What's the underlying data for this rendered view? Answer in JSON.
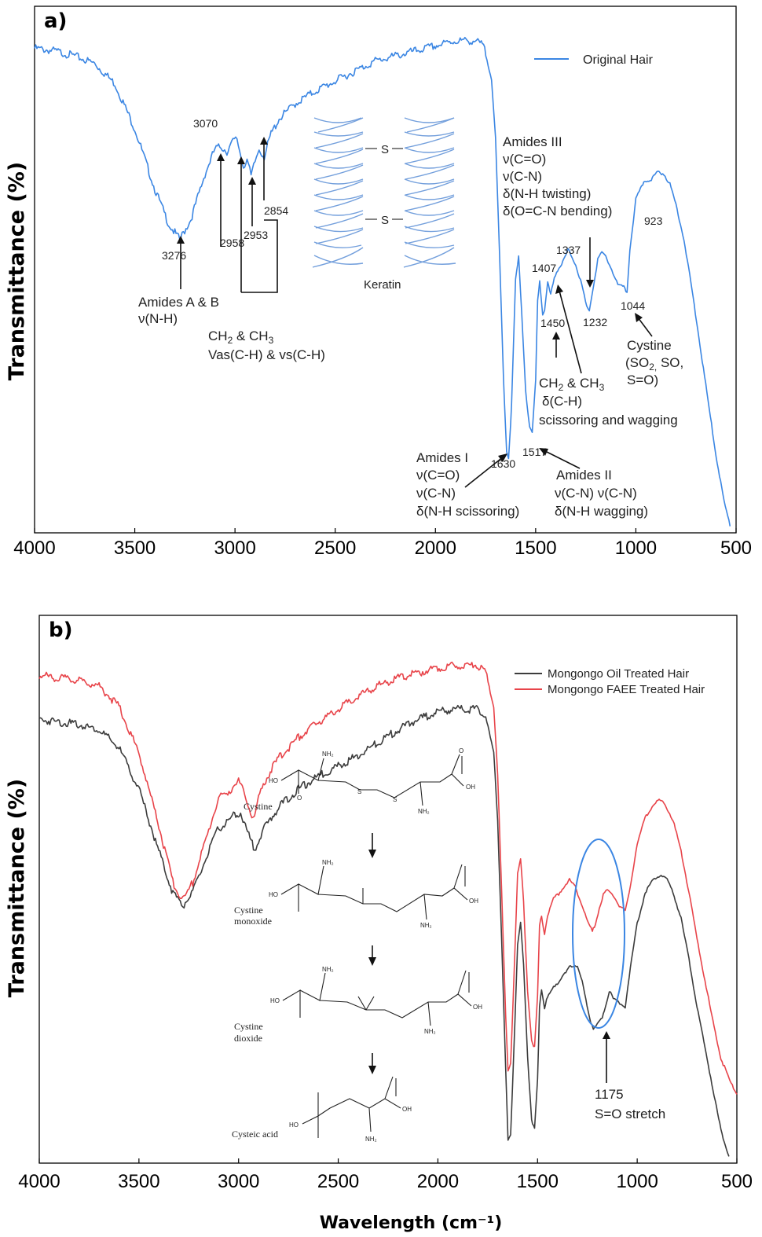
{
  "chart_data": [
    {
      "panel_label": "a)",
      "type": "line",
      "xlabel": "",
      "ylabel": "Transmittance (%)",
      "xlim": [
        4000,
        500
      ],
      "x_reversed": true,
      "x_ticks": [
        4000,
        3500,
        3000,
        2500,
        2000,
        1500,
        1000,
        500
      ],
      "legend_position": "top-right",
      "series": [
        {
          "name": "Original Hair",
          "color": "#3b86e3",
          "points": [
            [
              4000,
              0.96
            ],
            [
              3900,
              0.955
            ],
            [
              3800,
              0.945
            ],
            [
              3700,
              0.93
            ],
            [
              3600,
              0.89
            ],
            [
              3500,
              0.8
            ],
            [
              3400,
              0.68
            ],
            [
              3330,
              0.61
            ],
            [
              3276,
              0.58
            ],
            [
              3220,
              0.62
            ],
            [
              3150,
              0.71
            ],
            [
              3100,
              0.76
            ],
            [
              3070,
              0.765
            ],
            [
              3040,
              0.755
            ],
            [
              3010,
              0.775
            ],
            [
              2990,
              0.78
            ],
            [
              2970,
              0.745
            ],
            [
              2958,
              0.725
            ],
            [
              2940,
              0.74
            ],
            [
              2920,
              0.705
            ],
            [
              2900,
              0.735
            ],
            [
              2880,
              0.76
            ],
            [
              2854,
              0.745
            ],
            [
              2820,
              0.79
            ],
            [
              2780,
              0.82
            ],
            [
              2700,
              0.85
            ],
            [
              2600,
              0.875
            ],
            [
              2500,
              0.895
            ],
            [
              2400,
              0.915
            ],
            [
              2300,
              0.935
            ],
            [
              2200,
              0.945
            ],
            [
              2100,
              0.955
            ],
            [
              2000,
              0.965
            ],
            [
              1900,
              0.975
            ],
            [
              1800,
              0.975
            ],
            [
              1760,
              0.965
            ],
            [
              1720,
              0.9
            ],
            [
              1700,
              0.78
            ],
            [
              1680,
              0.55
            ],
            [
              1660,
              0.3
            ],
            [
              1645,
              0.16
            ],
            [
              1635,
              0.145
            ],
            [
              1620,
              0.25
            ],
            [
              1600,
              0.5
            ],
            [
              1585,
              0.545
            ],
            [
              1570,
              0.44
            ],
            [
              1550,
              0.28
            ],
            [
              1530,
              0.205
            ],
            [
              1517,
              0.195
            ],
            [
              1500,
              0.3
            ],
            [
              1490,
              0.46
            ],
            [
              1480,
              0.5
            ],
            [
              1465,
              0.43
            ],
            [
              1455,
              0.44
            ],
            [
              1440,
              0.495
            ],
            [
              1425,
              0.47
            ],
            [
              1407,
              0.505
            ],
            [
              1390,
              0.52
            ],
            [
              1370,
              0.53
            ],
            [
              1337,
              0.56
            ],
            [
              1300,
              0.53
            ],
            [
              1270,
              0.49
            ],
            [
              1245,
              0.445
            ],
            [
              1232,
              0.44
            ],
            [
              1210,
              0.49
            ],
            [
              1190,
              0.54
            ],
            [
              1170,
              0.555
            ],
            [
              1150,
              0.545
            ],
            [
              1120,
              0.52
            ],
            [
              1090,
              0.49
            ],
            [
              1060,
              0.485
            ],
            [
              1044,
              0.475
            ],
            [
              1030,
              0.56
            ],
            [
              1000,
              0.66
            ],
            [
              960,
              0.695
            ],
            [
              923,
              0.7
            ],
            [
              890,
              0.715
            ],
            [
              860,
              0.71
            ],
            [
              830,
              0.69
            ],
            [
              800,
              0.65
            ],
            [
              760,
              0.58
            ],
            [
              720,
              0.48
            ],
            [
              680,
              0.37
            ],
            [
              640,
              0.26
            ],
            [
              600,
              0.15
            ],
            [
              560,
              0.06
            ],
            [
              530,
              0.01
            ]
          ]
        }
      ],
      "peak_labels": [
        "3276",
        "3070",
        "2958",
        "2953",
        "2854",
        "1630",
        "1517",
        "1450",
        "1407",
        "1337",
        "1232",
        "1044",
        "923"
      ],
      "inset_caption": "Keratin",
      "inset_bond": "S",
      "annotations": {
        "amides_ab": [
          "Amides A & B",
          "ν(N-H)"
        ],
        "ch_stretch": {
          "line1_pre": "CH",
          "sub1": "2",
          "line1_mid": " & CH",
          "sub2": "3",
          "line2": "Vas(C-H) & vs(C-H)"
        },
        "amides_iii": [
          "Amides III",
          "ν(C=O)",
          "ν(C-N)",
          "δ(N-H twisting)",
          "δ(O=C-N bending)"
        ],
        "cystine": {
          "l1": "Cystine",
          "l2_pre": "(SO",
          "l2_sub": "2,",
          "l2_post": " SO,",
          "l3": "S=O)"
        },
        "ch_bend": {
          "line1_pre": "CH",
          "sub1": "2",
          "line1_mid": " & CH",
          "sub2": "3",
          "line2": "δ(C-H)",
          "line3": "scissoring and wagging"
        },
        "amides_i": [
          "Amides I",
          "ν(C=O)",
          "ν(C-N)",
          "δ(N-H scissoring)"
        ],
        "amides_ii": [
          "Amides II",
          "ν(C-N) ν(C-N)",
          "δ(N-H wagging)"
        ]
      }
    },
    {
      "panel_label": "b)",
      "type": "line",
      "xlabel": "Wavelength (cm⁻¹)",
      "ylabel": "Transmittance (%)",
      "xlim": [
        4000,
        500
      ],
      "x_reversed": true,
      "x_ticks": [
        4000,
        3500,
        3000,
        2500,
        2000,
        1500,
        1000,
        500
      ],
      "legend_position": "top-right",
      "series": [
        {
          "name": "Mongongo Oil Treated Hair",
          "color": "#3c3c3c",
          "points": [
            [
              4000,
              0.855
            ],
            [
              3900,
              0.85
            ],
            [
              3800,
              0.845
            ],
            [
              3700,
              0.835
            ],
            [
              3600,
              0.8
            ],
            [
              3500,
              0.72
            ],
            [
              3400,
              0.6
            ],
            [
              3330,
              0.52
            ],
            [
              3280,
              0.495
            ],
            [
              3230,
              0.52
            ],
            [
              3150,
              0.6
            ],
            [
              3100,
              0.645
            ],
            [
              3060,
              0.655
            ],
            [
              3020,
              0.67
            ],
            [
              2990,
              0.675
            ],
            [
              2960,
              0.64
            ],
            [
              2920,
              0.605
            ],
            [
              2900,
              0.62
            ],
            [
              2870,
              0.645
            ],
            [
              2800,
              0.685
            ],
            [
              2700,
              0.72
            ],
            [
              2600,
              0.745
            ],
            [
              2500,
              0.765
            ],
            [
              2400,
              0.785
            ],
            [
              2300,
              0.81
            ],
            [
              2200,
              0.835
            ],
            [
              2100,
              0.855
            ],
            [
              2000,
              0.87
            ],
            [
              1900,
              0.875
            ],
            [
              1800,
              0.875
            ],
            [
              1760,
              0.86
            ],
            [
              1720,
              0.79
            ],
            [
              1700,
              0.66
            ],
            [
              1680,
              0.43
            ],
            [
              1660,
              0.18
            ],
            [
              1648,
              0.04
            ],
            [
              1635,
              0.05
            ],
            [
              1620,
              0.2
            ],
            [
              1600,
              0.42
            ],
            [
              1585,
              0.465
            ],
            [
              1570,
              0.38
            ],
            [
              1550,
              0.2
            ],
            [
              1530,
              0.08
            ],
            [
              1515,
              0.065
            ],
            [
              1500,
              0.16
            ],
            [
              1490,
              0.3
            ],
            [
              1480,
              0.33
            ],
            [
              1465,
              0.295
            ],
            [
              1450,
              0.32
            ],
            [
              1420,
              0.34
            ],
            [
              1400,
              0.34
            ],
            [
              1370,
              0.36
            ],
            [
              1340,
              0.38
            ],
            [
              1300,
              0.375
            ],
            [
              1270,
              0.34
            ],
            [
              1240,
              0.28
            ],
            [
              1220,
              0.255
            ],
            [
              1200,
              0.265
            ],
            [
              1175,
              0.28
            ],
            [
              1160,
              0.3
            ],
            [
              1140,
              0.33
            ],
            [
              1120,
              0.315
            ],
            [
              1100,
              0.31
            ],
            [
              1080,
              0.305
            ],
            [
              1060,
              0.3
            ],
            [
              1040,
              0.36
            ],
            [
              1000,
              0.46
            ],
            [
              960,
              0.52
            ],
            [
              920,
              0.545
            ],
            [
              880,
              0.555
            ],
            [
              850,
              0.545
            ],
            [
              820,
              0.52
            ],
            [
              780,
              0.47
            ],
            [
              740,
              0.39
            ],
            [
              700,
              0.3
            ],
            [
              660,
              0.22
            ],
            [
              620,
              0.14
            ],
            [
              580,
              0.06
            ],
            [
              540,
              0.01
            ]
          ]
        },
        {
          "name": "Mongongo FAEE Treated Hair",
          "color": "#e8444a",
          "points": [
            [
              4000,
              0.94
            ],
            [
              3900,
              0.935
            ],
            [
              3800,
              0.93
            ],
            [
              3700,
              0.92
            ],
            [
              3600,
              0.88
            ],
            [
              3500,
              0.79
            ],
            [
              3400,
              0.65
            ],
            [
              3330,
              0.54
            ],
            [
              3280,
              0.505
            ],
            [
              3230,
              0.54
            ],
            [
              3150,
              0.64
            ],
            [
              3100,
              0.705
            ],
            [
              3060,
              0.71
            ],
            [
              3030,
              0.725
            ],
            [
              3000,
              0.735
            ],
            [
              2970,
              0.71
            ],
            [
              2940,
              0.675
            ],
            [
              2920,
              0.665
            ],
            [
              2900,
              0.7
            ],
            [
              2870,
              0.735
            ],
            [
              2800,
              0.78
            ],
            [
              2700,
              0.82
            ],
            [
              2600,
              0.85
            ],
            [
              2500,
              0.875
            ],
            [
              2400,
              0.9
            ],
            [
              2300,
              0.92
            ],
            [
              2200,
              0.935
            ],
            [
              2100,
              0.945
            ],
            [
              2000,
              0.955
            ],
            [
              1900,
              0.96
            ],
            [
              1800,
              0.96
            ],
            [
              1760,
              0.945
            ],
            [
              1720,
              0.88
            ],
            [
              1700,
              0.75
            ],
            [
              1680,
              0.52
            ],
            [
              1660,
              0.28
            ],
            [
              1648,
              0.175
            ],
            [
              1635,
              0.19
            ],
            [
              1620,
              0.34
            ],
            [
              1600,
              0.555
            ],
            [
              1585,
              0.585
            ],
            [
              1570,
              0.5
            ],
            [
              1550,
              0.33
            ],
            [
              1530,
              0.235
            ],
            [
              1515,
              0.22
            ],
            [
              1500,
              0.32
            ],
            [
              1490,
              0.455
            ],
            [
              1480,
              0.475
            ],
            [
              1465,
              0.44
            ],
            [
              1450,
              0.475
            ],
            [
              1420,
              0.51
            ],
            [
              1400,
              0.515
            ],
            [
              1370,
              0.53
            ],
            [
              1340,
              0.545
            ],
            [
              1310,
              0.53
            ],
            [
              1280,
              0.5
            ],
            [
              1250,
              0.465
            ],
            [
              1225,
              0.445
            ],
            [
              1210,
              0.46
            ],
            [
              1190,
              0.49
            ],
            [
              1170,
              0.515
            ],
            [
              1150,
              0.525
            ],
            [
              1120,
              0.515
            ],
            [
              1090,
              0.495
            ],
            [
              1060,
              0.485
            ],
            [
              1040,
              0.52
            ],
            [
              1000,
              0.615
            ],
            [
              960,
              0.665
            ],
            [
              920,
              0.69
            ],
            [
              890,
              0.7
            ],
            [
              860,
              0.69
            ],
            [
              820,
              0.66
            ],
            [
              780,
              0.6
            ],
            [
              740,
              0.52
            ],
            [
              700,
              0.43
            ],
            [
              660,
              0.35
            ],
            [
              620,
              0.27
            ],
            [
              580,
              0.2
            ],
            [
              540,
              0.16
            ],
            [
              500,
              0.13
            ]
          ]
        }
      ],
      "highlight_ellipse_color": "#3b86e3",
      "annotation": [
        "1175",
        "S=O stretch"
      ],
      "inset_scheme": {
        "molecules": [
          "Cystine",
          "Cystine",
          "monoxide",
          "Cystine",
          "dioxide",
          "Cysteic acid"
        ],
        "atoms": {
          "nh2": "NH₂",
          "oh": "OH",
          "ho": "HO",
          "o": "O",
          "s": "S"
        }
      }
    }
  ]
}
